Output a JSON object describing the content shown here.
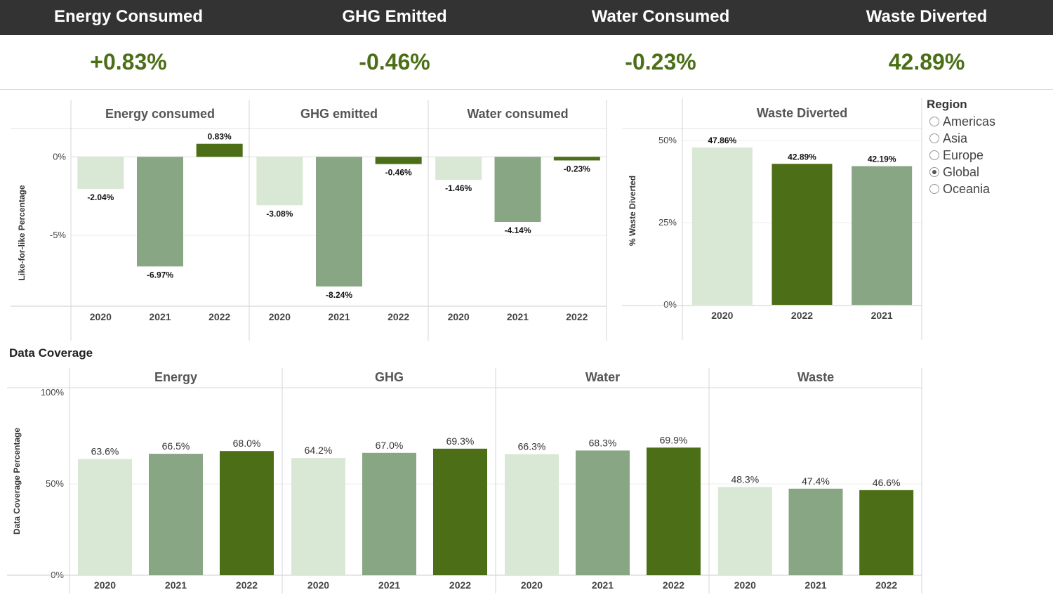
{
  "kpis": [
    {
      "title": "Energy Consumed",
      "value": "+0.83%"
    },
    {
      "title": "GHG Emitted",
      "value": "-0.46%"
    },
    {
      "title": "Water Consumed",
      "value": "-0.23%"
    },
    {
      "title": "Waste Diverted",
      "value": "42.89%"
    }
  ],
  "colors": {
    "light": "#d9e8d4",
    "mid": "#88a684",
    "dark": "#4b6e17",
    "kpi_value": "#4b6e17",
    "header_bg": "#333333"
  },
  "region_filter": {
    "title": "Region",
    "options": [
      "Americas",
      "Asia",
      "Europe",
      "Global",
      "Oceania"
    ],
    "selected": "Global"
  },
  "data_coverage_title": "Data Coverage",
  "chart_data": [
    {
      "type": "bar",
      "ylabel": "Like-for-like Percentage",
      "ylim": [
        -9.5,
        1.8
      ],
      "yticks": [
        0,
        -5
      ],
      "ytick_labels": [
        "0%",
        "-5%"
      ],
      "panels": [
        {
          "title": "Energy consumed",
          "categories": [
            "2020",
            "2021",
            "2022"
          ],
          "values": [
            -2.04,
            -6.97,
            0.83
          ],
          "labels": [
            "-2.04%",
            "-6.97%",
            "0.83%"
          ]
        },
        {
          "title": "GHG emitted",
          "categories": [
            "2020",
            "2021",
            "2022"
          ],
          "values": [
            -3.08,
            -8.24,
            -0.46
          ],
          "labels": [
            "-3.08%",
            "-8.24%",
            "-0.46%"
          ]
        },
        {
          "title": "Water consumed",
          "categories": [
            "2020",
            "2021",
            "2022"
          ],
          "values": [
            -1.46,
            -4.14,
            -0.23
          ],
          "labels": [
            "-1.46%",
            "-4.14%",
            "-0.23%"
          ]
        }
      ]
    },
    {
      "type": "bar",
      "title": "Waste Diverted",
      "ylabel": "% Waste Diverted",
      "ylim": [
        0,
        50
      ],
      "yticks": [
        0,
        25,
        50
      ],
      "ytick_labels": [
        "0%",
        "25%",
        "50%"
      ],
      "categories": [
        "2020",
        "2022",
        "2021"
      ],
      "values": [
        47.86,
        42.89,
        42.19
      ],
      "labels": [
        "47.86%",
        "42.89%",
        "42.19%"
      ]
    },
    {
      "type": "bar",
      "title": "Data Coverage",
      "ylabel": "Data Coverage Percentage",
      "ylim": [
        0,
        100
      ],
      "yticks": [
        0,
        50,
        100
      ],
      "ytick_labels": [
        "0%",
        "50%",
        "100%"
      ],
      "panels": [
        {
          "title": "Energy",
          "categories": [
            "2020",
            "2021",
            "2022"
          ],
          "values": [
            63.6,
            66.5,
            68.0
          ],
          "labels": [
            "63.6%",
            "66.5%",
            "68.0%"
          ]
        },
        {
          "title": "GHG",
          "categories": [
            "2020",
            "2021",
            "2022"
          ],
          "values": [
            64.2,
            67.0,
            69.3
          ],
          "labels": [
            "64.2%",
            "67.0%",
            "69.3%"
          ]
        },
        {
          "title": "Water",
          "categories": [
            "2020",
            "2021",
            "2022"
          ],
          "values": [
            66.3,
            68.3,
            69.9
          ],
          "labels": [
            "66.3%",
            "68.3%",
            "69.9%"
          ]
        },
        {
          "title": "Waste",
          "categories": [
            "2020",
            "2021",
            "2022"
          ],
          "values": [
            48.3,
            47.4,
            46.6
          ],
          "labels": [
            "48.3%",
            "47.4%",
            "46.6%"
          ]
        }
      ]
    }
  ]
}
